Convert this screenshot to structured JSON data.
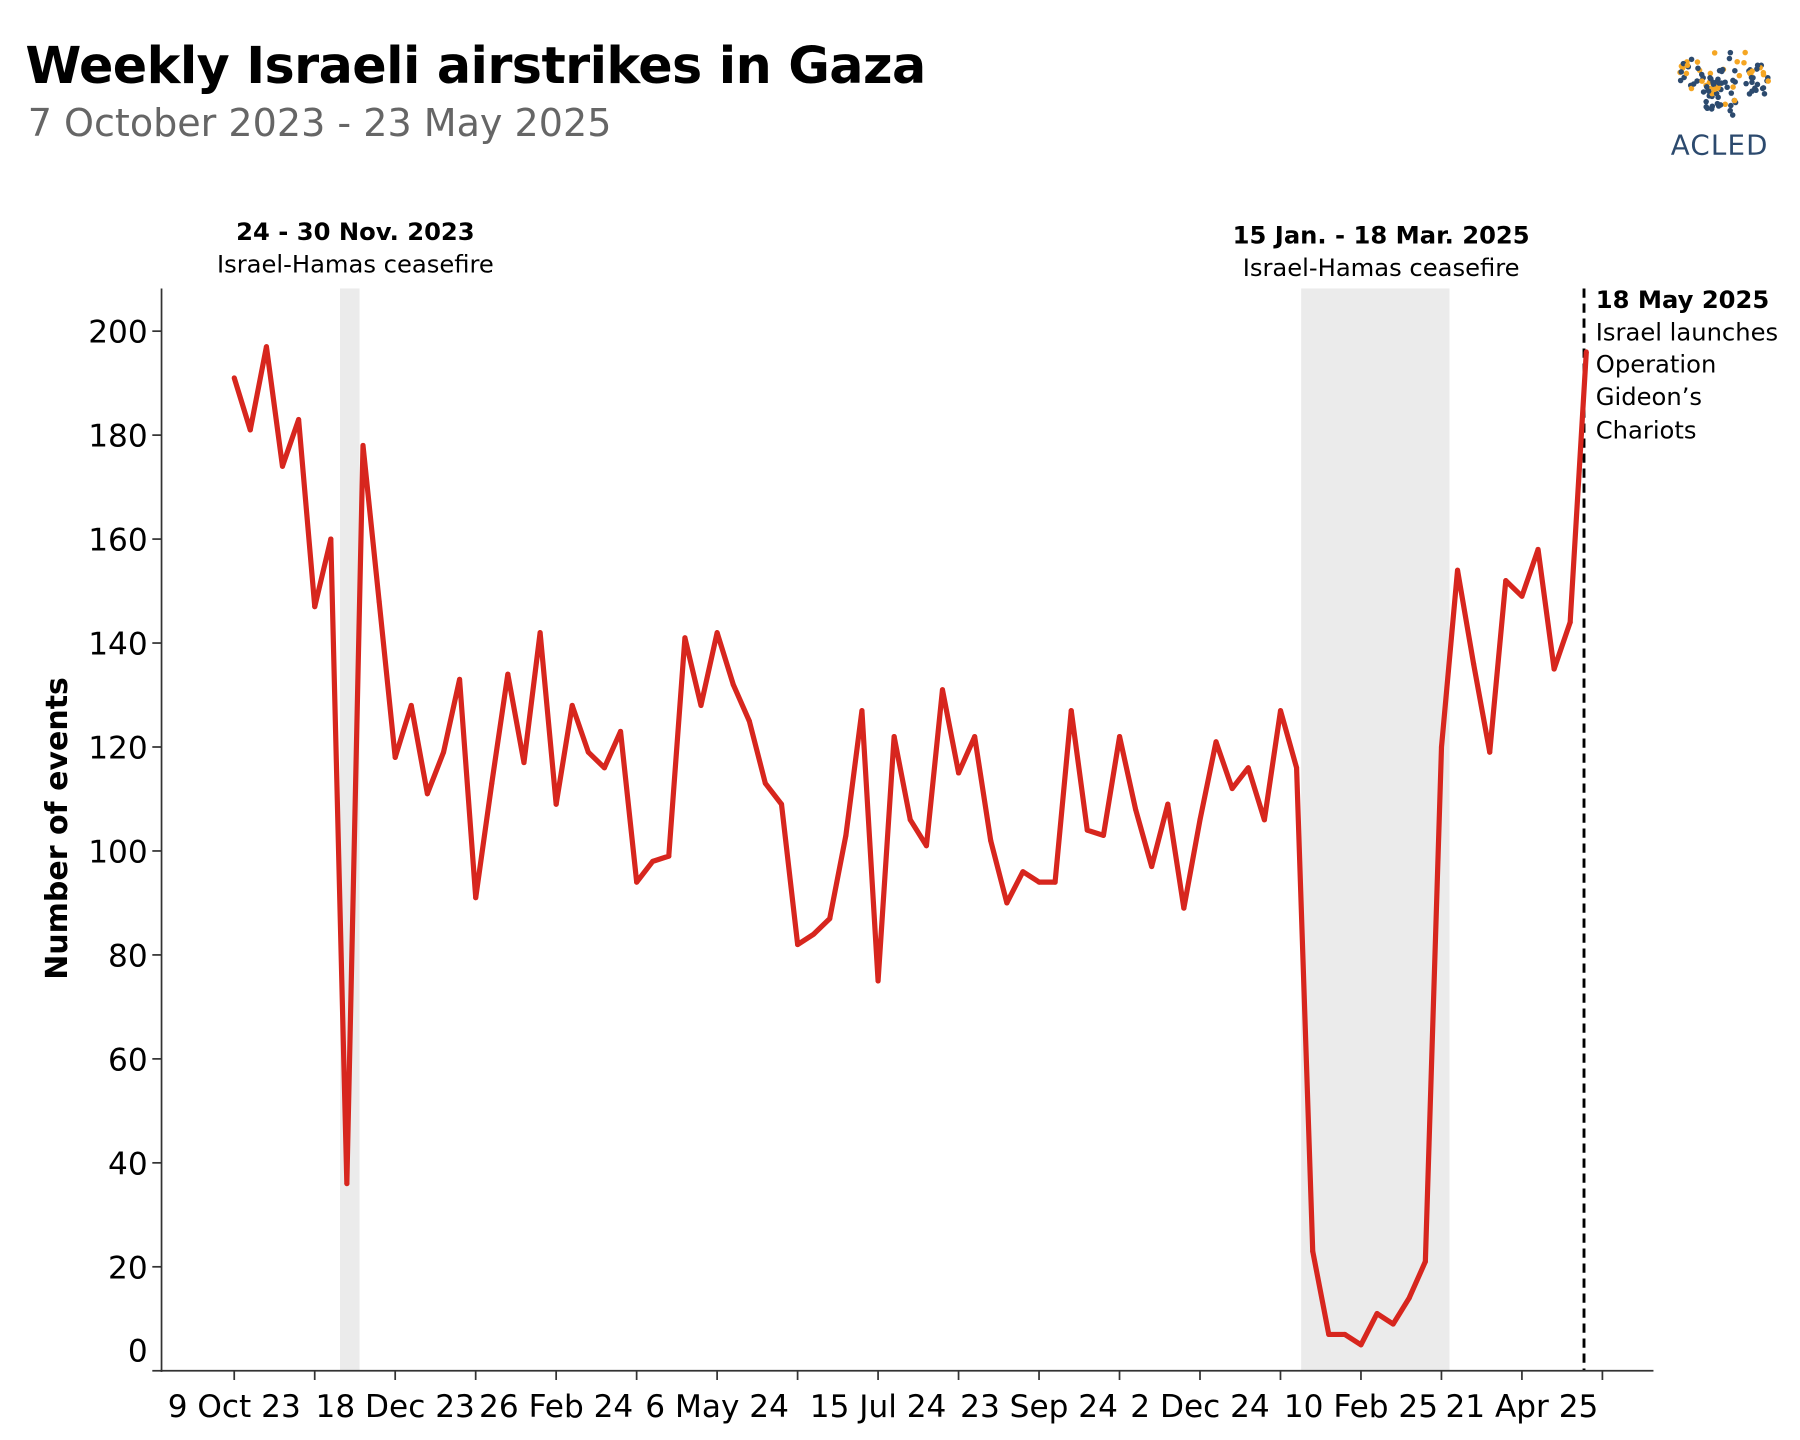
{
  "title": "Weekly Israeli airstrikes in Gaza",
  "subtitle": "7 October 2023 - 23 May 2025",
  "logo": {
    "text": "ACLED",
    "colors": {
      "navy": "#2c4a6e",
      "orange": "#f5a623"
    }
  },
  "chart_data": {
    "type": "line",
    "title": "Weekly Israeli airstrikes in Gaza",
    "xlabel": "",
    "ylabel": "Number of events",
    "ylim": [
      0,
      208
    ],
    "yticks": [
      0,
      20,
      40,
      60,
      80,
      100,
      120,
      140,
      160,
      180,
      200
    ],
    "xtick_labels": [
      {
        "date": "2023-10-09",
        "label": "9 Oct 23"
      },
      {
        "date": "2023-12-18",
        "label": "18 Dec 23"
      },
      {
        "date": "2024-02-26",
        "label": "26 Feb 24"
      },
      {
        "date": "2024-05-06",
        "label": "6 May 24"
      },
      {
        "date": "2024-07-15",
        "label": "15 Jul 24"
      },
      {
        "date": "2024-09-23",
        "label": "23 Sep 24"
      },
      {
        "date": "2024-12-02",
        "label": "2 Dec 24"
      },
      {
        "date": "2025-02-10",
        "label": "10 Feb 25"
      },
      {
        "date": "2025-04-21",
        "label": "21 Apr 25"
      }
    ],
    "grid": false,
    "line_color": "#d7261e",
    "x": [
      "2023-10-09",
      "2023-10-16",
      "2023-10-23",
      "2023-10-30",
      "2023-11-06",
      "2023-11-13",
      "2023-11-20",
      "2023-11-27",
      "2023-12-04",
      "2023-12-11",
      "2023-12-18",
      "2023-12-25",
      "2024-01-01",
      "2024-01-08",
      "2024-01-15",
      "2024-01-22",
      "2024-01-29",
      "2024-02-05",
      "2024-02-12",
      "2024-02-19",
      "2024-02-26",
      "2024-03-04",
      "2024-03-11",
      "2024-03-18",
      "2024-03-25",
      "2024-04-01",
      "2024-04-08",
      "2024-04-15",
      "2024-04-22",
      "2024-04-29",
      "2024-05-06",
      "2024-05-13",
      "2024-05-20",
      "2024-05-27",
      "2024-06-03",
      "2024-06-10",
      "2024-06-17",
      "2024-06-24",
      "2024-07-01",
      "2024-07-08",
      "2024-07-15",
      "2024-07-22",
      "2024-07-29",
      "2024-08-05",
      "2024-08-12",
      "2024-08-19",
      "2024-08-26",
      "2024-09-02",
      "2024-09-09",
      "2024-09-16",
      "2024-09-23",
      "2024-09-30",
      "2024-10-07",
      "2024-10-14",
      "2024-10-21",
      "2024-10-28",
      "2024-11-04",
      "2024-11-11",
      "2024-11-18",
      "2024-11-25",
      "2024-12-02",
      "2024-12-09",
      "2024-12-16",
      "2024-12-23",
      "2024-12-30",
      "2025-01-06",
      "2025-01-13",
      "2025-01-20",
      "2025-01-27",
      "2025-02-03",
      "2025-02-10",
      "2025-02-17",
      "2025-02-24",
      "2025-03-03",
      "2025-03-10",
      "2025-03-17",
      "2025-03-24",
      "2025-03-31",
      "2025-04-07",
      "2025-04-14",
      "2025-04-21",
      "2025-04-28",
      "2025-05-05",
      "2025-05-12",
      "2025-05-19"
    ],
    "values": [
      191,
      181,
      197,
      174,
      183,
      147,
      160,
      36,
      178,
      148,
      118,
      128,
      111,
      119,
      133,
      91,
      113,
      134,
      117,
      142,
      109,
      128,
      119,
      116,
      123,
      94,
      98,
      99,
      141,
      128,
      142,
      132,
      125,
      113,
      109,
      82,
      84,
      87,
      103,
      127,
      75,
      122,
      106,
      101,
      131,
      115,
      122,
      102,
      90,
      96,
      94,
      94,
      127,
      104,
      103,
      122,
      108,
      97,
      109,
      89,
      106,
      121,
      112,
      116,
      106,
      127,
      116,
      23,
      7,
      7,
      5,
      11,
      9,
      14,
      21,
      120,
      154,
      136,
      119,
      152,
      149,
      158,
      135,
      144,
      196
    ],
    "shaded_periods": [
      {
        "start": "2023-11-24",
        "end": "2023-11-30",
        "label_bold": "24 - 30 Nov. 2023",
        "label": "Israel-Hamas ceasefire",
        "color": "#ebebeb"
      },
      {
        "start": "2025-01-15",
        "end": "2025-03-18",
        "label_bold": "15 Jan. - 18 Mar. 2025",
        "label": "Israel-Hamas ceasefire",
        "color": "#ebebeb"
      }
    ],
    "event_line": {
      "date": "2025-05-18",
      "label_bold": "18 May 2025",
      "lines": [
        "Israel launches",
        "Operation",
        "Gideon’s",
        "Chariots"
      ]
    }
  }
}
